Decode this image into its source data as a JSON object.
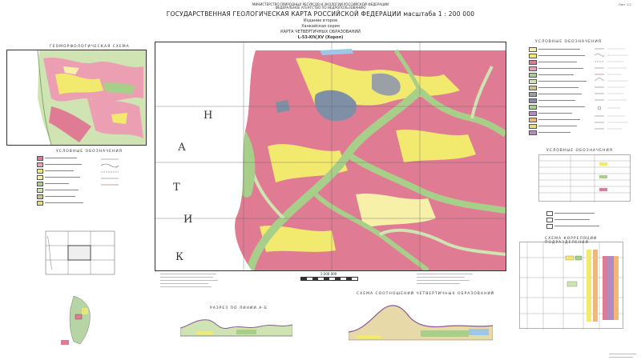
{
  "header": {
    "ministry_lines": [
      "МИНИСТЕРСТВО ПРИРОДНЫХ РЕСУРСОВ И ЭКОЛОГИИ РОССИЙСКОЙ ФЕДЕРАЦИИ",
      "ФЕДЕРАЛЬНОЕ АГЕНТСТВО ПО НЕДРОПОЛЬЗОВАНИЮ"
    ],
    "title": "ГОСУДАРСТВЕННАЯ ГЕОЛОГИЧЕСКАЯ КАРТА РОССИЙСКОЙ ФЕДЕРАЦИИ масштаба 1 : 200 000",
    "edition": "Издание второе",
    "series": "Ханкайская серия",
    "map_type": "КАРТА ЧЕТВЕРТИЧНЫХ ОБРАЗОВАНИЙ",
    "sheet": "L-53-XIV,XV (Хорол)",
    "sheet_corner": "Лист 1-2"
  },
  "sections": {
    "geomorph_scheme": "ГЕОМОРФОЛОГИЧЕСКАЯ СХЕМА",
    "legend": "УСЛОВНЫЕ ОБОЗНАЧЕНИЯ",
    "legend2": "УСЛОВНЫЕ ОБОЗНАЧЕНИЯ",
    "geomorph_legend": "УСЛОВНЫЕ ОБОЗНАЧЕНИЯ",
    "profile": "РАЗРЕЗ ПО ЛИНИИ А-Б",
    "correlation_scheme": "СХЕМА СООТНОШЕНИЙ ЧЕТВЕРТИЧНЫХ ОБРАЗОВАНИЙ",
    "correlation_chart": "СХЕМА КОРРЕЛЯЦИИ ПОДРАЗДЕЛЕНИЙ"
  },
  "map": {
    "scale_text": "1:200 000",
    "big_letters": [
      "Н",
      "А",
      "Т",
      "И",
      "К"
    ]
  },
  "colors": {
    "pink": "#e07b94",
    "light_pink": "#ec9fb2",
    "yellow": "#f2ea6e",
    "pale_yellow": "#f6f0a8",
    "green": "#a8cf8a",
    "light_green": "#cfe3b3",
    "grey": "#9aa0a6",
    "blue_grey": "#7f8fa6",
    "purple": "#b48ac3",
    "orange": "#f0b878",
    "olive": "#c9c78c"
  }
}
